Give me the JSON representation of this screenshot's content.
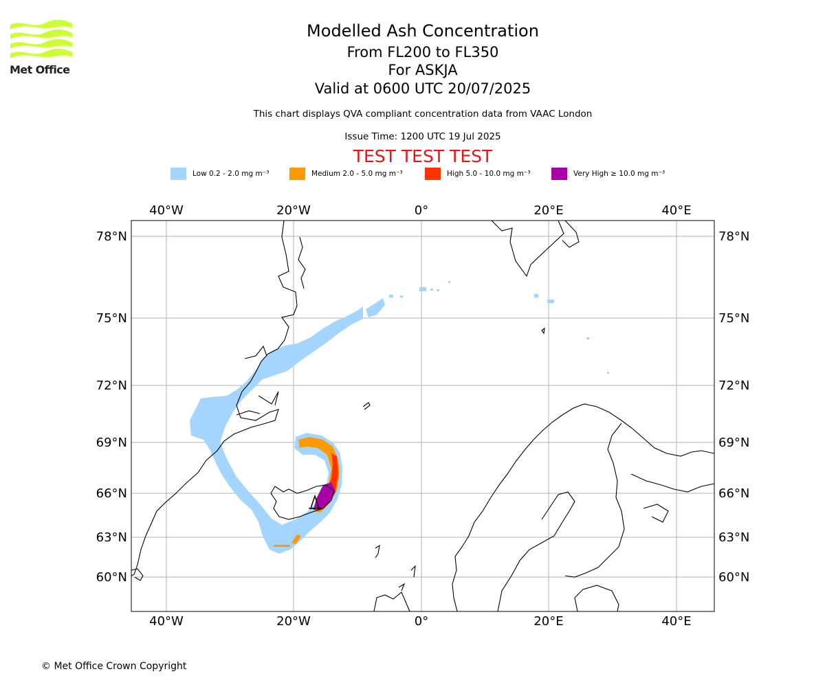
{
  "logo": {
    "text": "Met Office",
    "colors": {
      "waves": "#ccff33"
    }
  },
  "title": {
    "line1": "Modelled Ash Concentration",
    "line2": "From FL200 to FL350",
    "line3": "For ASKJA",
    "line4": "Valid at 0600 UTC 20/07/2025"
  },
  "note": "This chart displays QVA compliant concentration data from VAAC London",
  "issue_time": "Issue Time: 1200 UTC 19 Jul 2025",
  "test_banner": "TEST TEST TEST",
  "legend": [
    {
      "label": "Low 0.2 - 2.0 mg m⁻³",
      "color": "#a3d5ff"
    },
    {
      "label": "Medium 2.0 - 5.0 mg m⁻³",
      "color": "#ff9900"
    },
    {
      "label": "High 5.0 - 10.0 mg m⁻³",
      "color": "#ff3300"
    },
    {
      "label": "Very High  ≥  10.0 mg m⁻³",
      "color": "#aa00aa"
    }
  ],
  "map": {
    "lon_labels": [
      "40°W",
      "20°W",
      "0°",
      "20°E",
      "40°E"
    ],
    "lat_labels": [
      "78°N",
      "75°N",
      "72°N",
      "69°N",
      "66°N",
      "63°N",
      "60°N"
    ],
    "grid": true,
    "volcano_icon": "volcano-triangle-icon",
    "colors": {
      "coastline": "#000000",
      "grid": "#b0b0b0"
    }
  },
  "copyright": "© Met Office Crown Copyright"
}
